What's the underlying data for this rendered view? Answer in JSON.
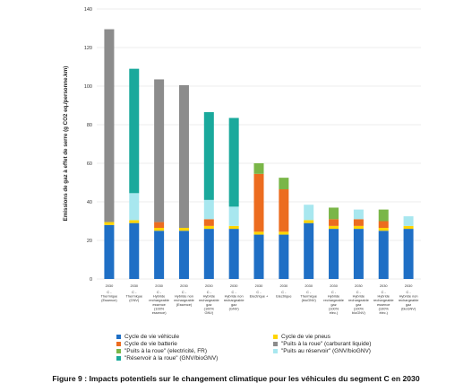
{
  "chart_data": {
    "type": "bar",
    "stacked": true,
    "ylabel": "Emissions de gaz à effet de serre (g CO2 eq./personne.km)",
    "ylim": [
      0,
      140
    ],
    "yticks": [
      0,
      20,
      40,
      60,
      80,
      100,
      120,
      140
    ],
    "grid": true,
    "legend_position": "bottom",
    "categories": [
      {
        "year": "2030",
        "label": [
          "C -",
          "Thermique",
          "(Essence)"
        ]
      },
      {
        "year": "2030",
        "label": [
          "C -",
          "Thermique",
          "(GNV)"
        ]
      },
      {
        "year": "2030",
        "label": [
          "C -",
          "Hybride",
          "rechargeable",
          "essence",
          "(100%",
          "essence)"
        ]
      },
      {
        "year": "2030",
        "label": [
          "C -",
          "Hybride non",
          "rechargeable",
          "(Essence)"
        ]
      },
      {
        "year": "2030",
        "label": [
          "C -",
          "Hybride",
          "rechargeable",
          "gaz",
          "(100%",
          "GNV)"
        ]
      },
      {
        "year": "2030",
        "label": [
          "C -",
          "Hybride non",
          "rechargeable",
          "gaz",
          "(GNV)"
        ]
      },
      {
        "year": "2030",
        "label": [
          "C -",
          "Electrique +"
        ]
      },
      {
        "year": "2030",
        "label": [
          "C -",
          "Electrique"
        ]
      },
      {
        "year": "2030",
        "label": [
          "C -",
          "Thermique",
          "(bioGNV)"
        ]
      },
      {
        "year": "2030",
        "label": [
          "C -",
          "Hybride",
          "rechargeable",
          "gaz",
          "(100%",
          "élec.)"
        ]
      },
      {
        "year": "2030",
        "label": [
          "C -",
          "Hybride",
          "rechargeable",
          "gaz",
          "(100%",
          "bioGNV)"
        ]
      },
      {
        "year": "2030",
        "label": [
          "C -",
          "Hybride",
          "rechargeable",
          "essence",
          "(100%",
          "élec.)"
        ]
      },
      {
        "year": "2030",
        "label": [
          "C -",
          "Hybride non",
          "rechargeable",
          "gaz",
          "(bioGNV)"
        ]
      }
    ],
    "series": [
      {
        "name": "Cycle de vie véhicule",
        "color": "#1f6fc5",
        "values": [
          28,
          29,
          25,
          25,
          26,
          26,
          23,
          23,
          29,
          26,
          26,
          25,
          26
        ]
      },
      {
        "name": "Cycle de vie pneus",
        "color": "#ffd500",
        "values": [
          1.5,
          1.5,
          1.5,
          1.5,
          1.5,
          1.5,
          1.5,
          1.5,
          1.5,
          1.5,
          1.5,
          1.5,
          1.5
        ]
      },
      {
        "name": "Cycle de vie batterie",
        "color": "#ec6c1f",
        "values": [
          0,
          0,
          3,
          0,
          3.5,
          0,
          30,
          22,
          0,
          3.5,
          3.5,
          3.5,
          0
        ]
      },
      {
        "name": "\"Puits à la roue\" (carburant liquide)",
        "color": "#8c8c8c",
        "values": [
          100,
          0,
          74,
          74,
          0,
          0,
          0,
          0,
          0,
          0,
          0,
          0,
          0
        ]
      },
      {
        "name": "\"Puits à la roue\" (electricité, FR)",
        "color": "#7ab648",
        "values": [
          0,
          0,
          0,
          0,
          0,
          0,
          5.5,
          6,
          0,
          6,
          0,
          6,
          0
        ]
      },
      {
        "name": "\"Puits au réservoir\" (GNV/bioGNV)",
        "color": "#a8e7ef",
        "values": [
          0,
          14,
          0,
          0,
          10,
          10,
          0,
          0,
          8,
          0,
          5,
          0,
          5
        ]
      },
      {
        "name": "\"Réservoir à la roue\" (GNV/bioGNV)",
        "color": "#1aa99c",
        "values": [
          0,
          64.5,
          0,
          0,
          45.5,
          46,
          0,
          0,
          0,
          0,
          0,
          0,
          0
        ]
      }
    ]
  },
  "legend": {
    "items": [
      {
        "label": "Cycle de vie véhicule",
        "color": "#1f6fc5"
      },
      {
        "label": "Cycle de vie pneus",
        "color": "#ffd500"
      },
      {
        "label": "Cycle de vie batterie",
        "color": "#ec6c1f"
      },
      {
        "label": "\"Puits à la roue\" (carburant liquide)",
        "color": "#8c8c8c"
      },
      {
        "label": "\"Puits à la roue\" (electricité, FR)",
        "color": "#7ab648"
      },
      {
        "label": "\"Puits au réservoir\" (GNV/bioGNV)",
        "color": "#a8e7ef"
      },
      {
        "label": "\"Réservoir à la roue\" (GNV/bioGNV)",
        "color": "#1aa99c"
      }
    ]
  },
  "caption": "Figure 9 : Impacts potentiels sur le changement climatique pour les véhicules du segment C en 2030"
}
